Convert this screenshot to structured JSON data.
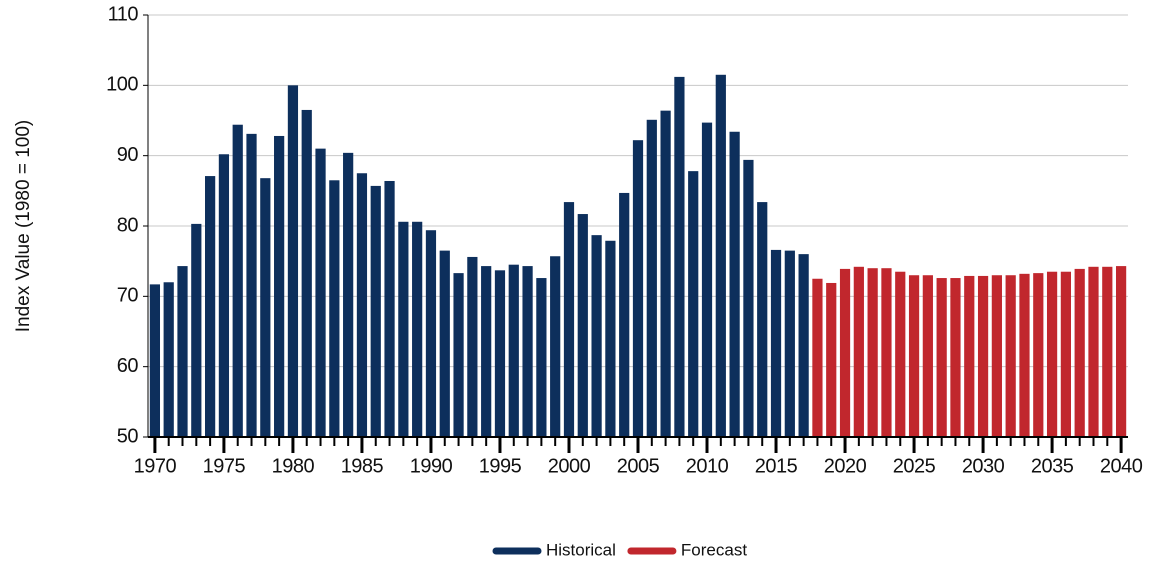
{
  "chart_data": {
    "type": "bar",
    "y_label": "Index Value (1980 = 100)",
    "x": [
      1970,
      1971,
      1972,
      1973,
      1974,
      1975,
      1976,
      1977,
      1978,
      1979,
      1980,
      1981,
      1982,
      1983,
      1984,
      1985,
      1986,
      1987,
      1988,
      1989,
      1990,
      1991,
      1992,
      1993,
      1994,
      1995,
      1996,
      1997,
      1998,
      1999,
      2000,
      2001,
      2002,
      2003,
      2004,
      2005,
      2006,
      2007,
      2008,
      2009,
      2010,
      2011,
      2012,
      2013,
      2014,
      2015,
      2016,
      2017,
      2018,
      2019,
      2020,
      2021,
      2022,
      2023,
      2024,
      2025,
      2026,
      2027,
      2028,
      2029,
      2030,
      2031,
      2032,
      2033,
      2034,
      2035,
      2036,
      2037,
      2038,
      2039,
      2040
    ],
    "series": [
      {
        "name": "Historical",
        "color": "#0d2f5c",
        "values": [
          71.7,
          72.0,
          74.3,
          80.3,
          87.1,
          90.2,
          94.4,
          93.1,
          86.8,
          92.8,
          100,
          96.5,
          91.0,
          86.5,
          90.4,
          87.5,
          85.7,
          86.4,
          80.6,
          80.6,
          79.4,
          76.5,
          73.3,
          75.6,
          74.3,
          73.7,
          74.5,
          74.3,
          72.6,
          75.7,
          83.4,
          81.7,
          78.7,
          77.9,
          84.7,
          92.2,
          95.1,
          96.4,
          101.2,
          87.8,
          94.7,
          101.5,
          93.4,
          89.4,
          83.4,
          76.6,
          76.5,
          76.0,
          null,
          null,
          null,
          null,
          null,
          null,
          null,
          null,
          null,
          null,
          null,
          null,
          null,
          null,
          null,
          null,
          null,
          null,
          null,
          null,
          null,
          null,
          null
        ]
      },
      {
        "name": "Forecast",
        "color": "#c1272d",
        "values": [
          null,
          null,
          null,
          null,
          null,
          null,
          null,
          null,
          null,
          null,
          null,
          null,
          null,
          null,
          null,
          null,
          null,
          null,
          null,
          null,
          null,
          null,
          null,
          null,
          null,
          null,
          null,
          null,
          null,
          null,
          null,
          null,
          null,
          null,
          null,
          null,
          null,
          null,
          null,
          null,
          null,
          null,
          null,
          null,
          null,
          null,
          null,
          null,
          72.5,
          71.9,
          73.9,
          74.2,
          74.0,
          74.0,
          73.5,
          73.0,
          73.0,
          72.6,
          72.6,
          72.9,
          72.9,
          73.0,
          73.0,
          73.2,
          73.3,
          73.5,
          73.5,
          73.9,
          74.2,
          74.2,
          74.3
        ]
      }
    ],
    "xlim": [
      1969.5,
      2040.5
    ],
    "xticks": [
      1970,
      1975,
      1980,
      1985,
      1990,
      1995,
      2000,
      2005,
      2010,
      2015,
      2020,
      2025,
      2030,
      2035,
      2040
    ],
    "ylim": [
      50,
      110
    ],
    "yticks": [
      50,
      60,
      70,
      80,
      90,
      100,
      110
    ],
    "grid": true,
    "legend": "bottom"
  }
}
